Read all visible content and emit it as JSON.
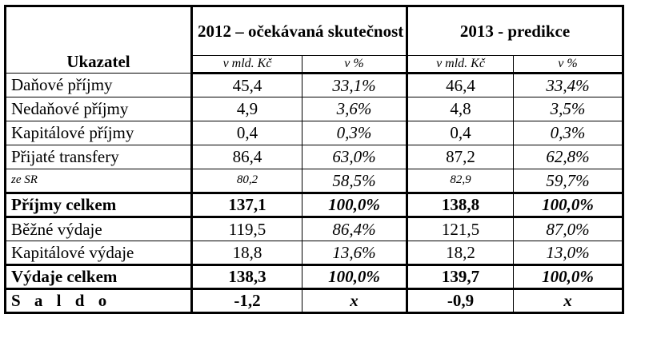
{
  "table": {
    "header": {
      "indicator_label": "Ukazatel",
      "group_2012": "2012 – očekávaná skutečnost",
      "group_2013": "2013 - predikce",
      "unit_amount": "v mld. Kč",
      "unit_percent": "v %"
    },
    "rows": [
      {
        "label": "Daňové příjmy",
        "v2012": "45,4",
        "p2012": "33,1%",
        "v2013": "46,4",
        "p2013": "33,4%"
      },
      {
        "label": "Nedaňové příjmy",
        "v2012": "4,9",
        "p2012": "3,6%",
        "v2013": "4,8",
        "p2013": "3,5%"
      },
      {
        "label": "Kapitálové příjmy",
        "v2012": "0,4",
        "p2012": "0,3%",
        "v2013": "0,4",
        "p2013": "0,3%"
      },
      {
        "label": "Přijaté transfery",
        "v2012": "86,4",
        "p2012": "63,0%",
        "v2013": "87,2",
        "p2013": "62,8%"
      },
      {
        "label": "ze SR",
        "v2012": "80,2",
        "p2012": "58,5%",
        "v2013": "82,9",
        "p2013": "59,7%"
      },
      {
        "label": "Příjmy celkem",
        "v2012": "137,1",
        "p2012": "100,0%",
        "v2013": "138,8",
        "p2013": "100,0%"
      },
      {
        "label": "Běžné výdaje",
        "v2012": "119,5",
        "p2012": "86,4%",
        "v2013": "121,5",
        "p2013": "87,0%"
      },
      {
        "label": "Kapitálové výdaje",
        "v2012": "18,8",
        "p2012": "13,6%",
        "v2013": "18,2",
        "p2013": "13,0%"
      },
      {
        "label": "Výdaje celkem",
        "v2012": "138,3",
        "p2012": "100,0%",
        "v2013": "139,7",
        "p2013": "100,0%"
      },
      {
        "label": "S a l d o",
        "v2012": "-1,2",
        "p2012": "x",
        "v2013": "-0,9",
        "p2013": "x"
      }
    ]
  }
}
